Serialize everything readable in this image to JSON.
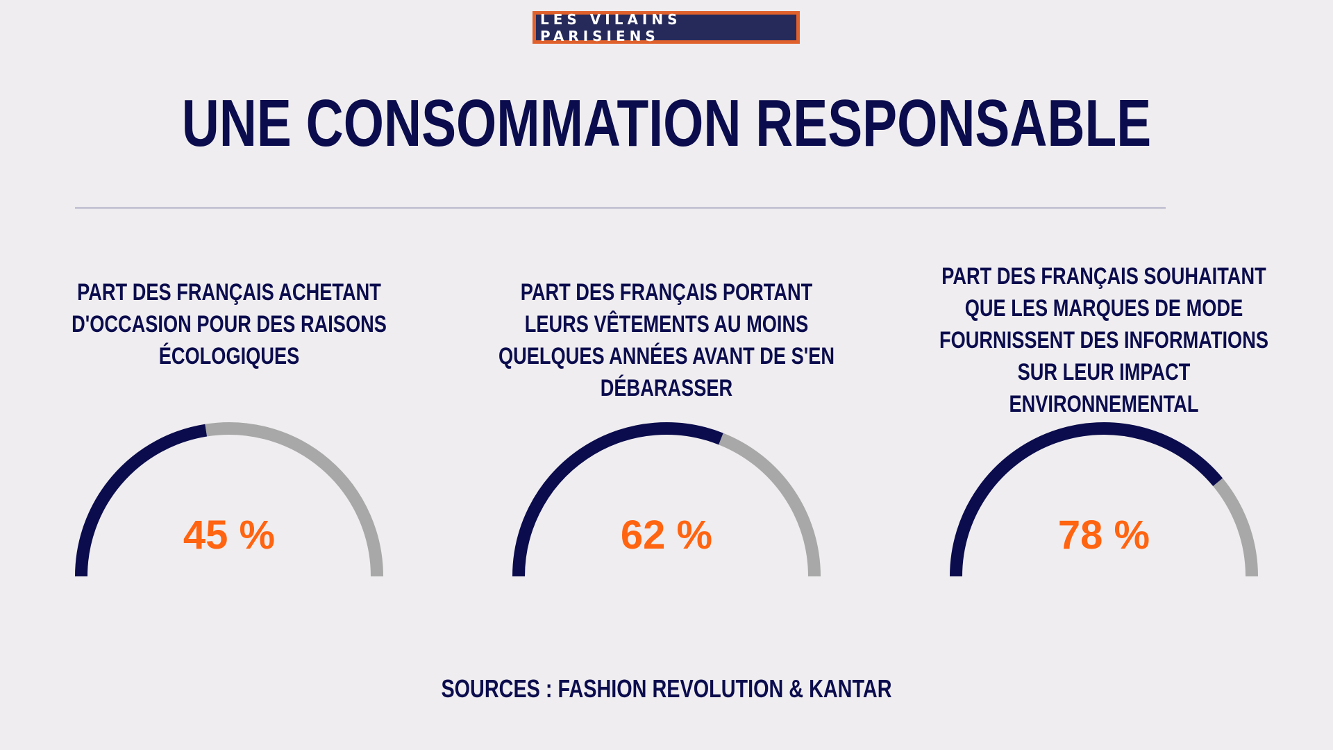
{
  "brand": {
    "name": "LES VILAINS PARISIENS"
  },
  "title": "UNE CONSOMMATION RESPONSABLE",
  "sources": "SOURCES : FASHION REVOLUTION & KANTAR",
  "colors": {
    "background": "#efedef",
    "navy": "#0b0c4d",
    "gauge_fill": "#0b0c4d",
    "gauge_track": "#a7a8a7",
    "value_text": "#ff6411",
    "brand_border": "#e0612c",
    "brand_bg": "#262a5a"
  },
  "stats": [
    {
      "label": "PART DES FRANÇAIS ACHETANT D'OCCASION POUR DES RAISONS ÉCOLOGIQUES",
      "value_text": "45 %"
    },
    {
      "label": "PART DES FRANÇAIS PORTANT LEURS VÊTEMENTS AU MOINS QUELQUES ANNÉES AVANT DE S'EN DÉBARASSER",
      "value_text": "62 %"
    },
    {
      "label": "PART DES FRANÇAIS SOUHAITANT QUE LES MARQUES DE MODE FOURNISSENT DES INFORMATIONS SUR LEUR IMPACT ENVIRONNEMENTAL",
      "value_text": "78 %"
    }
  ],
  "chart_data": {
    "type": "gauge",
    "categories": [
      "PART DES FRANÇAIS ACHETANT D'OCCASION POUR DES RAISONS ÉCOLOGIQUES",
      "PART DES FRANÇAIS PORTANT LEURS VÊTEMENTS AU MOINS QUELQUES ANNÉES AVANT DE S'EN DÉBARASSER",
      "PART DES FRANÇAIS SOUHAITANT QUE LES MARQUES DE MODE FOURNISSENT DES INFORMATIONS SUR LEUR IMPACT ENVIRONNEMENTAL"
    ],
    "values": [
      45,
      62,
      78
    ],
    "unit": "%",
    "ylim": [
      0,
      100
    ],
    "shape": "semicircle"
  }
}
